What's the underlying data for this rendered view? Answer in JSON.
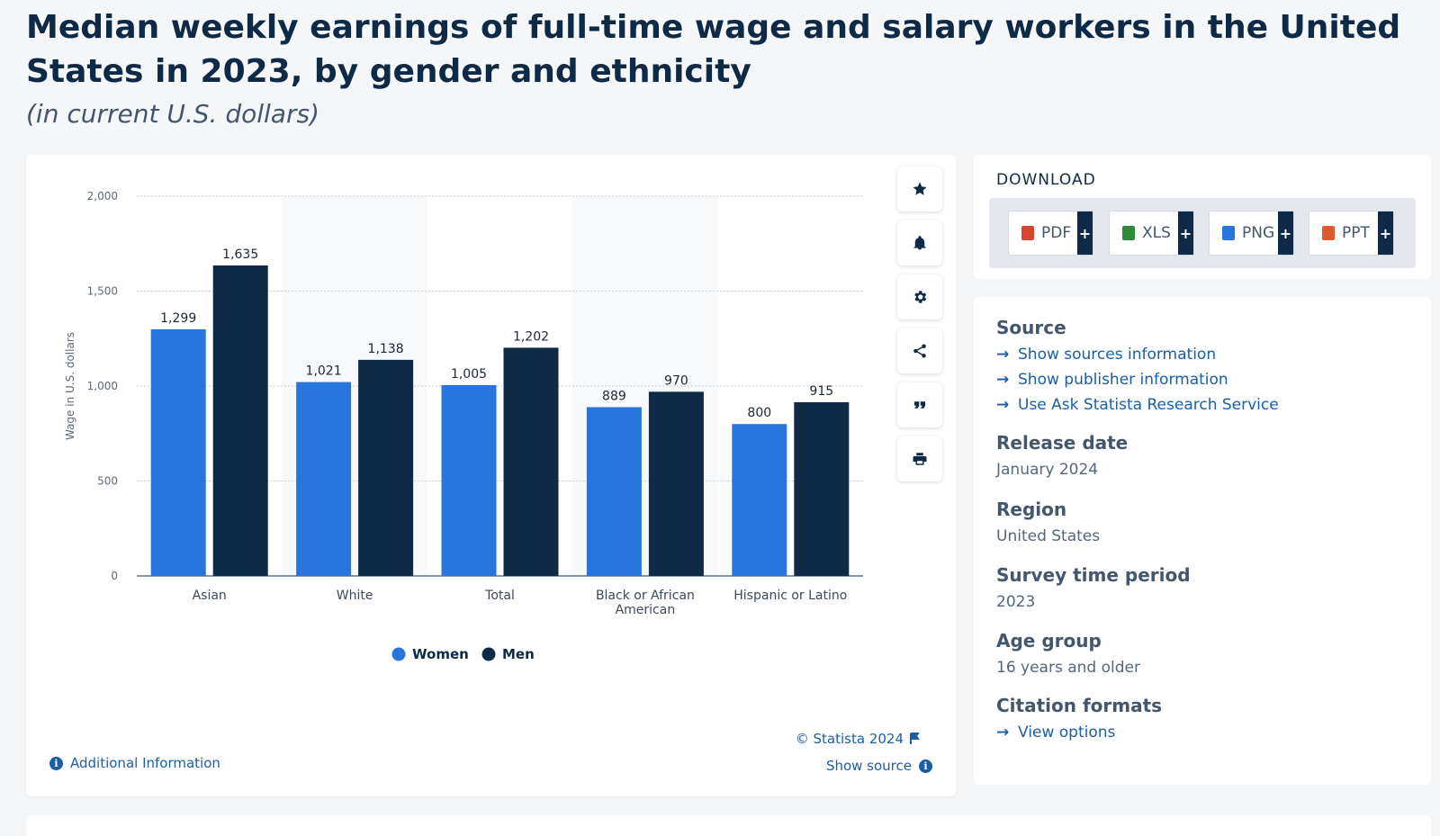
{
  "header": {
    "title": "Median weekly earnings of full-time wage and salary workers in the United States in 2023, by gender and ethnicity",
    "subtitle": "(in current U.S. dollars)"
  },
  "chart_data": {
    "type": "bar",
    "categories": [
      "Asian",
      "White",
      "Total",
      "Black or African American",
      "Hispanic or Latino"
    ],
    "series": [
      {
        "name": "Women",
        "values": [
          1299,
          1021,
          1005,
          889,
          800
        ],
        "color": "#2876dd"
      },
      {
        "name": "Men",
        "values": [
          1635,
          1138,
          1202,
          970,
          915
        ],
        "color": "#0f2a46"
      }
    ],
    "ylabel": "Wage in U.S. dollars",
    "xlabel": "",
    "ylim": [
      0,
      2000
    ],
    "yticks": [
      0,
      500,
      1000,
      1500,
      2000
    ],
    "ytick_labels": [
      "0",
      "500",
      "1,000",
      "1,500",
      "2,000"
    ],
    "grid": true,
    "legend_position": "bottom-center"
  },
  "chart_footer": {
    "credit": "© Statista 2024",
    "show_source": "Show source",
    "additional_info": "Additional Information"
  },
  "toolbar": {
    "icons": [
      "star-icon",
      "bell-icon",
      "gear-icon",
      "share-icon",
      "quote-icon",
      "print-icon"
    ]
  },
  "download": {
    "title": "DOWNLOAD",
    "buttons": [
      {
        "label": "PDF",
        "color": "#d9442f"
      },
      {
        "label": "XLS",
        "color": "#2e8b3a"
      },
      {
        "label": "PNG",
        "color": "#2876dd"
      },
      {
        "label": "PPT",
        "color": "#e0592a"
      }
    ],
    "plus": "+"
  },
  "details": {
    "source_heading": "Source",
    "source_links": [
      "Show sources information",
      "Show publisher information",
      "Use Ask Statista Research Service"
    ],
    "release_heading": "Release date",
    "release_value": "January 2024",
    "region_heading": "Region",
    "region_value": "United States",
    "survey_heading": "Survey time period",
    "survey_value": "2023",
    "age_heading": "Age group",
    "age_value": "16 years and older",
    "citation_heading": "Citation formats",
    "citation_link": "View options"
  }
}
